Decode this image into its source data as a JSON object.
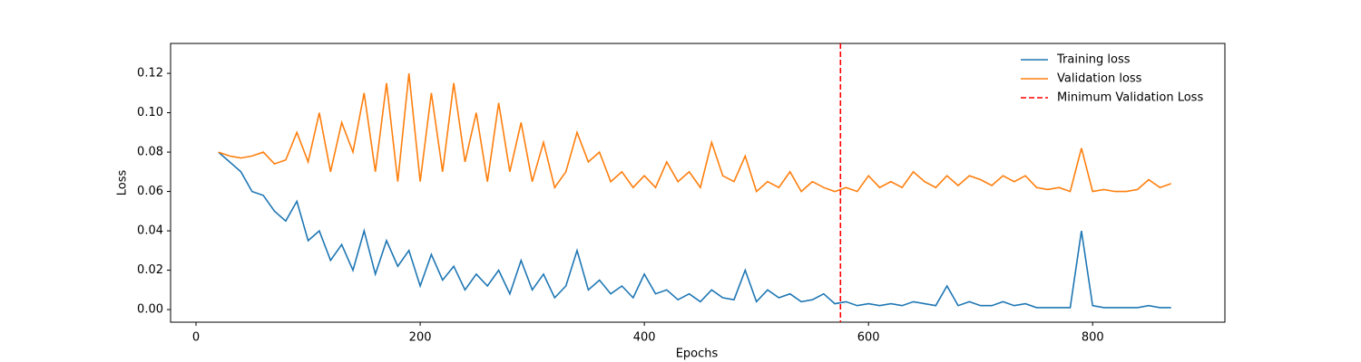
{
  "chart_data": {
    "type": "line",
    "xlabel": "Epochs",
    "ylabel": "Loss",
    "x": [
      20,
      30,
      40,
      50,
      60,
      70,
      80,
      90,
      100,
      110,
      120,
      130,
      140,
      150,
      160,
      170,
      180,
      190,
      200,
      210,
      220,
      230,
      240,
      250,
      260,
      270,
      280,
      290,
      300,
      310,
      320,
      330,
      340,
      350,
      360,
      370,
      380,
      390,
      400,
      410,
      420,
      430,
      440,
      450,
      460,
      470,
      480,
      490,
      500,
      510,
      520,
      530,
      540,
      550,
      560,
      570,
      580,
      590,
      600,
      610,
      620,
      630,
      640,
      650,
      660,
      670,
      680,
      690,
      700,
      710,
      720,
      730,
      740,
      750,
      760,
      770,
      780,
      790,
      800,
      810,
      820,
      830,
      840,
      850,
      860,
      870
    ],
    "series": [
      {
        "name": "Training loss",
        "color": "#1f77b4",
        "values": [
          0.08,
          0.075,
          0.07,
          0.06,
          0.058,
          0.05,
          0.045,
          0.055,
          0.035,
          0.04,
          0.025,
          0.033,
          0.02,
          0.04,
          0.018,
          0.035,
          0.022,
          0.03,
          0.012,
          0.028,
          0.015,
          0.022,
          0.01,
          0.018,
          0.012,
          0.02,
          0.008,
          0.025,
          0.01,
          0.018,
          0.006,
          0.012,
          0.03,
          0.01,
          0.015,
          0.008,
          0.012,
          0.006,
          0.018,
          0.008,
          0.01,
          0.005,
          0.008,
          0.004,
          0.01,
          0.006,
          0.005,
          0.02,
          0.004,
          0.01,
          0.006,
          0.008,
          0.004,
          0.005,
          0.008,
          0.003,
          0.004,
          0.002,
          0.003,
          0.002,
          0.003,
          0.002,
          0.004,
          0.003,
          0.002,
          0.012,
          0.002,
          0.004,
          0.002,
          0.002,
          0.004,
          0.002,
          0.003,
          0.001,
          0.001,
          0.001,
          0.001,
          0.04,
          0.002,
          0.001,
          0.001,
          0.001,
          0.001,
          0.002,
          0.001,
          0.001
        ]
      },
      {
        "name": "Validation loss",
        "color": "#ff7f0e",
        "values": [
          0.08,
          0.078,
          0.077,
          0.078,
          0.08,
          0.074,
          0.076,
          0.09,
          0.075,
          0.1,
          0.07,
          0.095,
          0.08,
          0.11,
          0.07,
          0.115,
          0.065,
          0.12,
          0.065,
          0.11,
          0.07,
          0.115,
          0.075,
          0.1,
          0.065,
          0.105,
          0.07,
          0.095,
          0.065,
          0.085,
          0.062,
          0.07,
          0.09,
          0.075,
          0.08,
          0.065,
          0.07,
          0.062,
          0.068,
          0.062,
          0.075,
          0.065,
          0.07,
          0.062,
          0.085,
          0.068,
          0.065,
          0.078,
          0.06,
          0.065,
          0.062,
          0.07,
          0.06,
          0.065,
          0.062,
          0.06,
          0.062,
          0.06,
          0.068,
          0.062,
          0.065,
          0.062,
          0.07,
          0.065,
          0.062,
          0.068,
          0.063,
          0.068,
          0.066,
          0.063,
          0.068,
          0.065,
          0.068,
          0.062,
          0.061,
          0.062,
          0.06,
          0.082,
          0.06,
          0.061,
          0.06,
          0.06,
          0.061,
          0.066,
          0.062,
          0.064
        ]
      }
    ],
    "vlines": [
      {
        "name": "Minimum Validation Loss",
        "x": 575,
        "color": "#ff0000"
      }
    ],
    "xlim": [
      -22.7,
      918
    ],
    "ylim": [
      -0.0064,
      0.1352
    ],
    "xticks": [
      0,
      200,
      400,
      600,
      800
    ],
    "yticks": [
      {
        "value": 0,
        "label": "0.00"
      },
      {
        "value": 0.02,
        "label": "0.02"
      },
      {
        "value": 0.04,
        "label": "0.04"
      },
      {
        "value": 0.06,
        "label": "0.06"
      },
      {
        "value": 0.08,
        "label": "0.08"
      },
      {
        "value": 0.1,
        "label": "0.10"
      },
      {
        "value": 0.12,
        "label": "0.12"
      }
    ],
    "legend": "upper right"
  }
}
